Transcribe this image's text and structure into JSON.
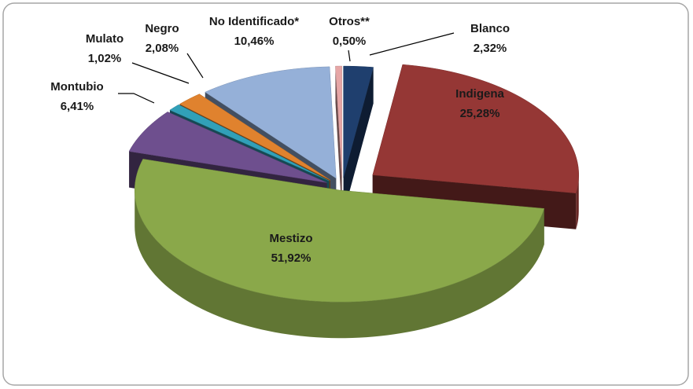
{
  "chart_data": {
    "type": "pie3d",
    "categories": [
      "Blanco",
      "Indigena",
      "Mestizo",
      "Montubio",
      "Mulato",
      "Negro",
      "No Identificado*",
      "Otros**"
    ],
    "values": [
      2.32,
      25.28,
      51.92,
      6.41,
      1.02,
      2.08,
      10.46,
      0.5
    ],
    "value_labels": [
      "2,32%",
      "25,28%",
      "51,92%",
      "6,41%",
      "1,02%",
      "2,08%",
      "10,46%",
      "0,50%"
    ],
    "colors": [
      "#1f3f6e",
      "#953735",
      "#8aa84a",
      "#6e4f8e",
      "#31a0b8",
      "#e0822e",
      "#95b0d8",
      "#e6a6a6"
    ]
  }
}
